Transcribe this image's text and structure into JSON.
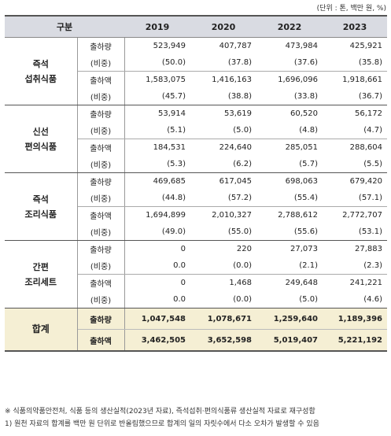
{
  "unit_note": "(단위 : 톤, 백만 원, %)",
  "header": {
    "col0": "구분",
    "years": [
      "2019",
      "2020",
      "2022",
      "2023"
    ]
  },
  "groups": [
    {
      "name_lines": [
        "즉석",
        "섭취식품"
      ],
      "rows": [
        {
          "label": "출하량",
          "values": [
            "523,949",
            "407,787",
            "473,984",
            "425,921"
          ]
        },
        {
          "label": "(비중)",
          "values": [
            "(50.0)",
            "(37.8)",
            "(37.6)",
            "(35.8)"
          ]
        },
        {
          "label": "출하액",
          "values": [
            "1,583,075",
            "1,416,163",
            "1,696,096",
            "1,918,661"
          ]
        },
        {
          "label": "(비중)",
          "values": [
            "(45.7)",
            "(38.8)",
            "(33.8)",
            "(36.7)"
          ]
        }
      ]
    },
    {
      "name_lines": [
        "신선",
        "편의식품"
      ],
      "rows": [
        {
          "label": "출하량",
          "values": [
            "53,914",
            "53,619",
            "60,520",
            "56,172"
          ]
        },
        {
          "label": "(비중)",
          "values": [
            "(5.1)",
            "(5.0)",
            "(4.8)",
            "(4.7)"
          ]
        },
        {
          "label": "출하액",
          "values": [
            "184,531",
            "224,640",
            "285,051",
            "288,604"
          ]
        },
        {
          "label": "(비중)",
          "values": [
            "(5.3)",
            "(6.2)",
            "(5.7)",
            "(5.5)"
          ]
        }
      ]
    },
    {
      "name_lines": [
        "즉석",
        "조리식품"
      ],
      "rows": [
        {
          "label": "출하량",
          "values": [
            "469,685",
            "617,045",
            "698,063",
            "679,420"
          ]
        },
        {
          "label": "(비중)",
          "values": [
            "(44.8)",
            "(57.2)",
            "(55.4)",
            "(57.1)"
          ]
        },
        {
          "label": "출하액",
          "values": [
            "1,694,899",
            "2,010,327",
            "2,788,612",
            "2,772,707"
          ]
        },
        {
          "label": "(비중)",
          "values": [
            "(49.0)",
            "(55.0)",
            "(55.6)",
            "(53.1)"
          ]
        }
      ]
    },
    {
      "name_lines": [
        "간편",
        "조리세트"
      ],
      "rows": [
        {
          "label": "출하량",
          "values": [
            "0",
            "220",
            "27,073",
            "27,883"
          ]
        },
        {
          "label": "(비중)",
          "values": [
            "0.0",
            "(0.0)",
            "(2.1)",
            "(2.3)"
          ]
        },
        {
          "label": "출하액",
          "values": [
            "0",
            "1,468",
            "249,648",
            "241,221"
          ]
        },
        {
          "label": "(비중)",
          "values": [
            "0.0",
            "(0.0)",
            "(5.0)",
            "(4.6)"
          ]
        }
      ]
    }
  ],
  "total": {
    "name": "합계",
    "rows": [
      {
        "label": "출하량",
        "values": [
          "1,047,548",
          "1,078,671",
          "1,259,640",
          "1,189,396"
        ]
      },
      {
        "label": "출하액",
        "values": [
          "3,462,505",
          "3,652,598",
          "5,019,407",
          "5,221,192"
        ]
      }
    ]
  },
  "notes": [
    "※ 식품의약품안전처, 식품 등의 생산실적(2023년 자료), 즉석섭취·편의식품류 생산실적 자료로 재구성함",
    "1) 원천 자료의 합계를 백만 원 단위로 반올림했으므로 합계의 일의 자릿수에서 다소 오차가 발생할 수 있음"
  ],
  "colors": {
    "header_bg": "#d9dbe2",
    "total_bg": "#f5efd4"
  }
}
